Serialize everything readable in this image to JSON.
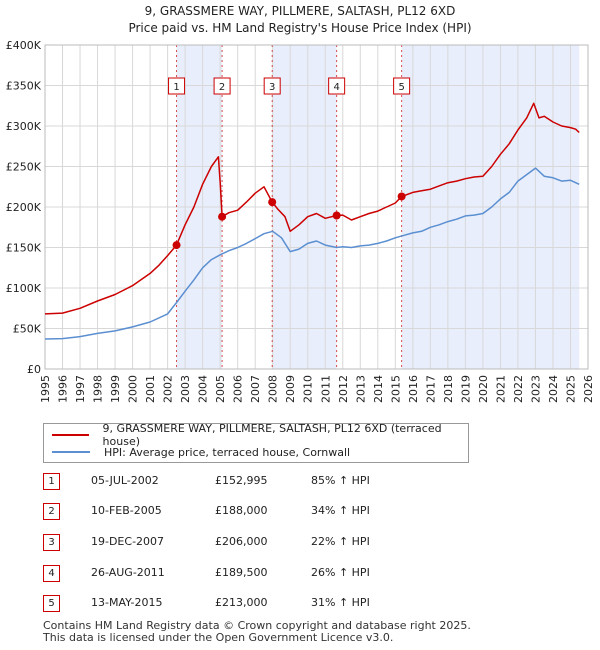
{
  "chart_data": {
    "type": "line",
    "title": "9, GRASSMERE WAY, PILLMERE, SALTASH, PL12 6XD",
    "subtitle": "Price paid vs. HM Land Registry's House Price Index (HPI)",
    "xlabel": "",
    "ylabel": "",
    "xlim": [
      1995,
      2026
    ],
    "ylim": [
      0,
      400000
    ],
    "y_ticks": [
      {
        "value": 0,
        "label": "£0"
      },
      {
        "value": 50000,
        "label": "£50K"
      },
      {
        "value": 100000,
        "label": "£100K"
      },
      {
        "value": 150000,
        "label": "£150K"
      },
      {
        "value": 200000,
        "label": "£200K"
      },
      {
        "value": 250000,
        "label": "£250K"
      },
      {
        "value": 300000,
        "label": "£300K"
      },
      {
        "value": 350000,
        "label": "£350K"
      },
      {
        "value": 400000,
        "label": "£400K"
      }
    ],
    "x_ticks": [
      "1995",
      "1996",
      "1997",
      "1998",
      "1999",
      "2000",
      "2001",
      "2002",
      "2003",
      "2004",
      "2005",
      "2006",
      "2007",
      "2008",
      "2009",
      "2010",
      "2011",
      "2012",
      "2013",
      "2014",
      "2015",
      "2016",
      "2017",
      "2018",
      "2019",
      "2020",
      "2021",
      "2022",
      "2023",
      "2024",
      "2025",
      "2026"
    ],
    "grid": true,
    "shaded_periods": [
      [
        2002.51,
        2005.11
      ],
      [
        2007.97,
        2011.65
      ],
      [
        2015.36,
        2025.5
      ]
    ],
    "series": [
      {
        "name": "9, GRASSMERE WAY, PILLMERE, SALTASH, PL12 6XD (terraced house)",
        "color": "#cc0000",
        "x": [
          1995.0,
          1996.0,
          1997.0,
          1998.0,
          1999.0,
          2000.0,
          2001.0,
          2001.5,
          2002.0,
          2002.51,
          2003.0,
          2003.5,
          2004.0,
          2004.5,
          2004.9,
          2005.0,
          2005.11,
          2005.5,
          2006.0,
          2006.5,
          2007.0,
          2007.5,
          2007.97,
          2008.3,
          2008.7,
          2009.0,
          2009.5,
          2010.0,
          2010.5,
          2011.0,
          2011.65,
          2012.0,
          2012.5,
          2013.0,
          2013.5,
          2014.0,
          2014.5,
          2015.0,
          2015.36,
          2016.0,
          2016.5,
          2017.0,
          2017.5,
          2018.0,
          2018.5,
          2019.0,
          2019.5,
          2020.0,
          2020.5,
          2021.0,
          2021.5,
          2022.0,
          2022.5,
          2022.9,
          2023.2,
          2023.5,
          2024.0,
          2024.5,
          2025.0,
          2025.3,
          2025.5
        ],
        "values": [
          68000,
          69000,
          75000,
          84000,
          92000,
          103000,
          118000,
          128000,
          140000,
          152995,
          178000,
          200000,
          228000,
          250000,
          262000,
          230000,
          188000,
          193000,
          196000,
          206000,
          217000,
          225000,
          206000,
          197000,
          188000,
          170000,
          178000,
          188000,
          192000,
          186000,
          189500,
          190000,
          184000,
          188000,
          192000,
          195000,
          200000,
          205000,
          213000,
          218000,
          220000,
          222000,
          226000,
          230000,
          232000,
          235000,
          237000,
          238000,
          250000,
          265000,
          278000,
          295000,
          310000,
          328000,
          310000,
          312000,
          305000,
          300000,
          298000,
          296000,
          292000
        ]
      },
      {
        "name": "HPI: Average price, terraced house, Cornwall",
        "color": "#5b8fd1",
        "x": [
          1995.0,
          1996.0,
          1997.0,
          1998.0,
          1999.0,
          2000.0,
          2001.0,
          2002.0,
          2002.51,
          2003.0,
          2003.5,
          2004.0,
          2004.5,
          2005.0,
          2005.5,
          2006.0,
          2006.5,
          2007.0,
          2007.5,
          2008.0,
          2008.5,
          2009.0,
          2009.5,
          2010.0,
          2010.5,
          2011.0,
          2011.65,
          2012.0,
          2012.5,
          2013.0,
          2013.5,
          2014.0,
          2014.5,
          2015.0,
          2015.5,
          2016.0,
          2016.5,
          2017.0,
          2017.5,
          2018.0,
          2018.5,
          2019.0,
          2019.5,
          2020.0,
          2020.5,
          2021.0,
          2021.5,
          2022.0,
          2022.5,
          2023.0,
          2023.5,
          2024.0,
          2024.5,
          2025.0,
          2025.5
        ],
        "values": [
          37000,
          37500,
          40000,
          44000,
          47000,
          52000,
          58000,
          68000,
          82000,
          96000,
          110000,
          125000,
          135000,
          141000,
          146000,
          150000,
          155000,
          161000,
          167000,
          170000,
          162000,
          145000,
          148000,
          155000,
          158000,
          153000,
          150000,
          151000,
          150000,
          152000,
          153000,
          155000,
          158000,
          162000,
          165000,
          168000,
          170000,
          175000,
          178000,
          182000,
          185000,
          189000,
          190000,
          192000,
          200000,
          210000,
          218000,
          232000,
          240000,
          248000,
          238000,
          236000,
          232000,
          233000,
          228000
        ]
      }
    ],
    "sales": [
      {
        "label": "1",
        "x": 2002.51,
        "value": 152995
      },
      {
        "label": "2",
        "x": 2005.11,
        "value": 188000
      },
      {
        "label": "3",
        "x": 2007.97,
        "value": 206000
      },
      {
        "label": "4",
        "x": 2011.65,
        "value": 189500
      },
      {
        "label": "5",
        "x": 2015.36,
        "value": 213000
      }
    ]
  },
  "legend": {
    "property_label": "9, GRASSMERE WAY, PILLMERE, SALTASH, PL12 6XD (terraced house)",
    "hpi_label": "HPI: Average price, terraced house, Cornwall",
    "property_color": "#cc0000",
    "hpi_color": "#5b8fd1"
  },
  "transactions": [
    {
      "num": "1",
      "date": "05-JUL-2002",
      "price": "£152,995",
      "hpi": "85% ↑ HPI"
    },
    {
      "num": "2",
      "date": "10-FEB-2005",
      "price": "£188,000",
      "hpi": "34% ↑ HPI"
    },
    {
      "num": "3",
      "date": "19-DEC-2007",
      "price": "£206,000",
      "hpi": "22% ↑ HPI"
    },
    {
      "num": "4",
      "date": "26-AUG-2011",
      "price": "£189,500",
      "hpi": "26% ↑ HPI"
    },
    {
      "num": "5",
      "date": "13-MAY-2015",
      "price": "£213,000",
      "hpi": "31% ↑ HPI"
    }
  ],
  "footer": {
    "line1": "Contains HM Land Registry data © Crown copyright and database right 2025.",
    "line2": "This data is licensed under the Open Government Licence v3.0."
  }
}
